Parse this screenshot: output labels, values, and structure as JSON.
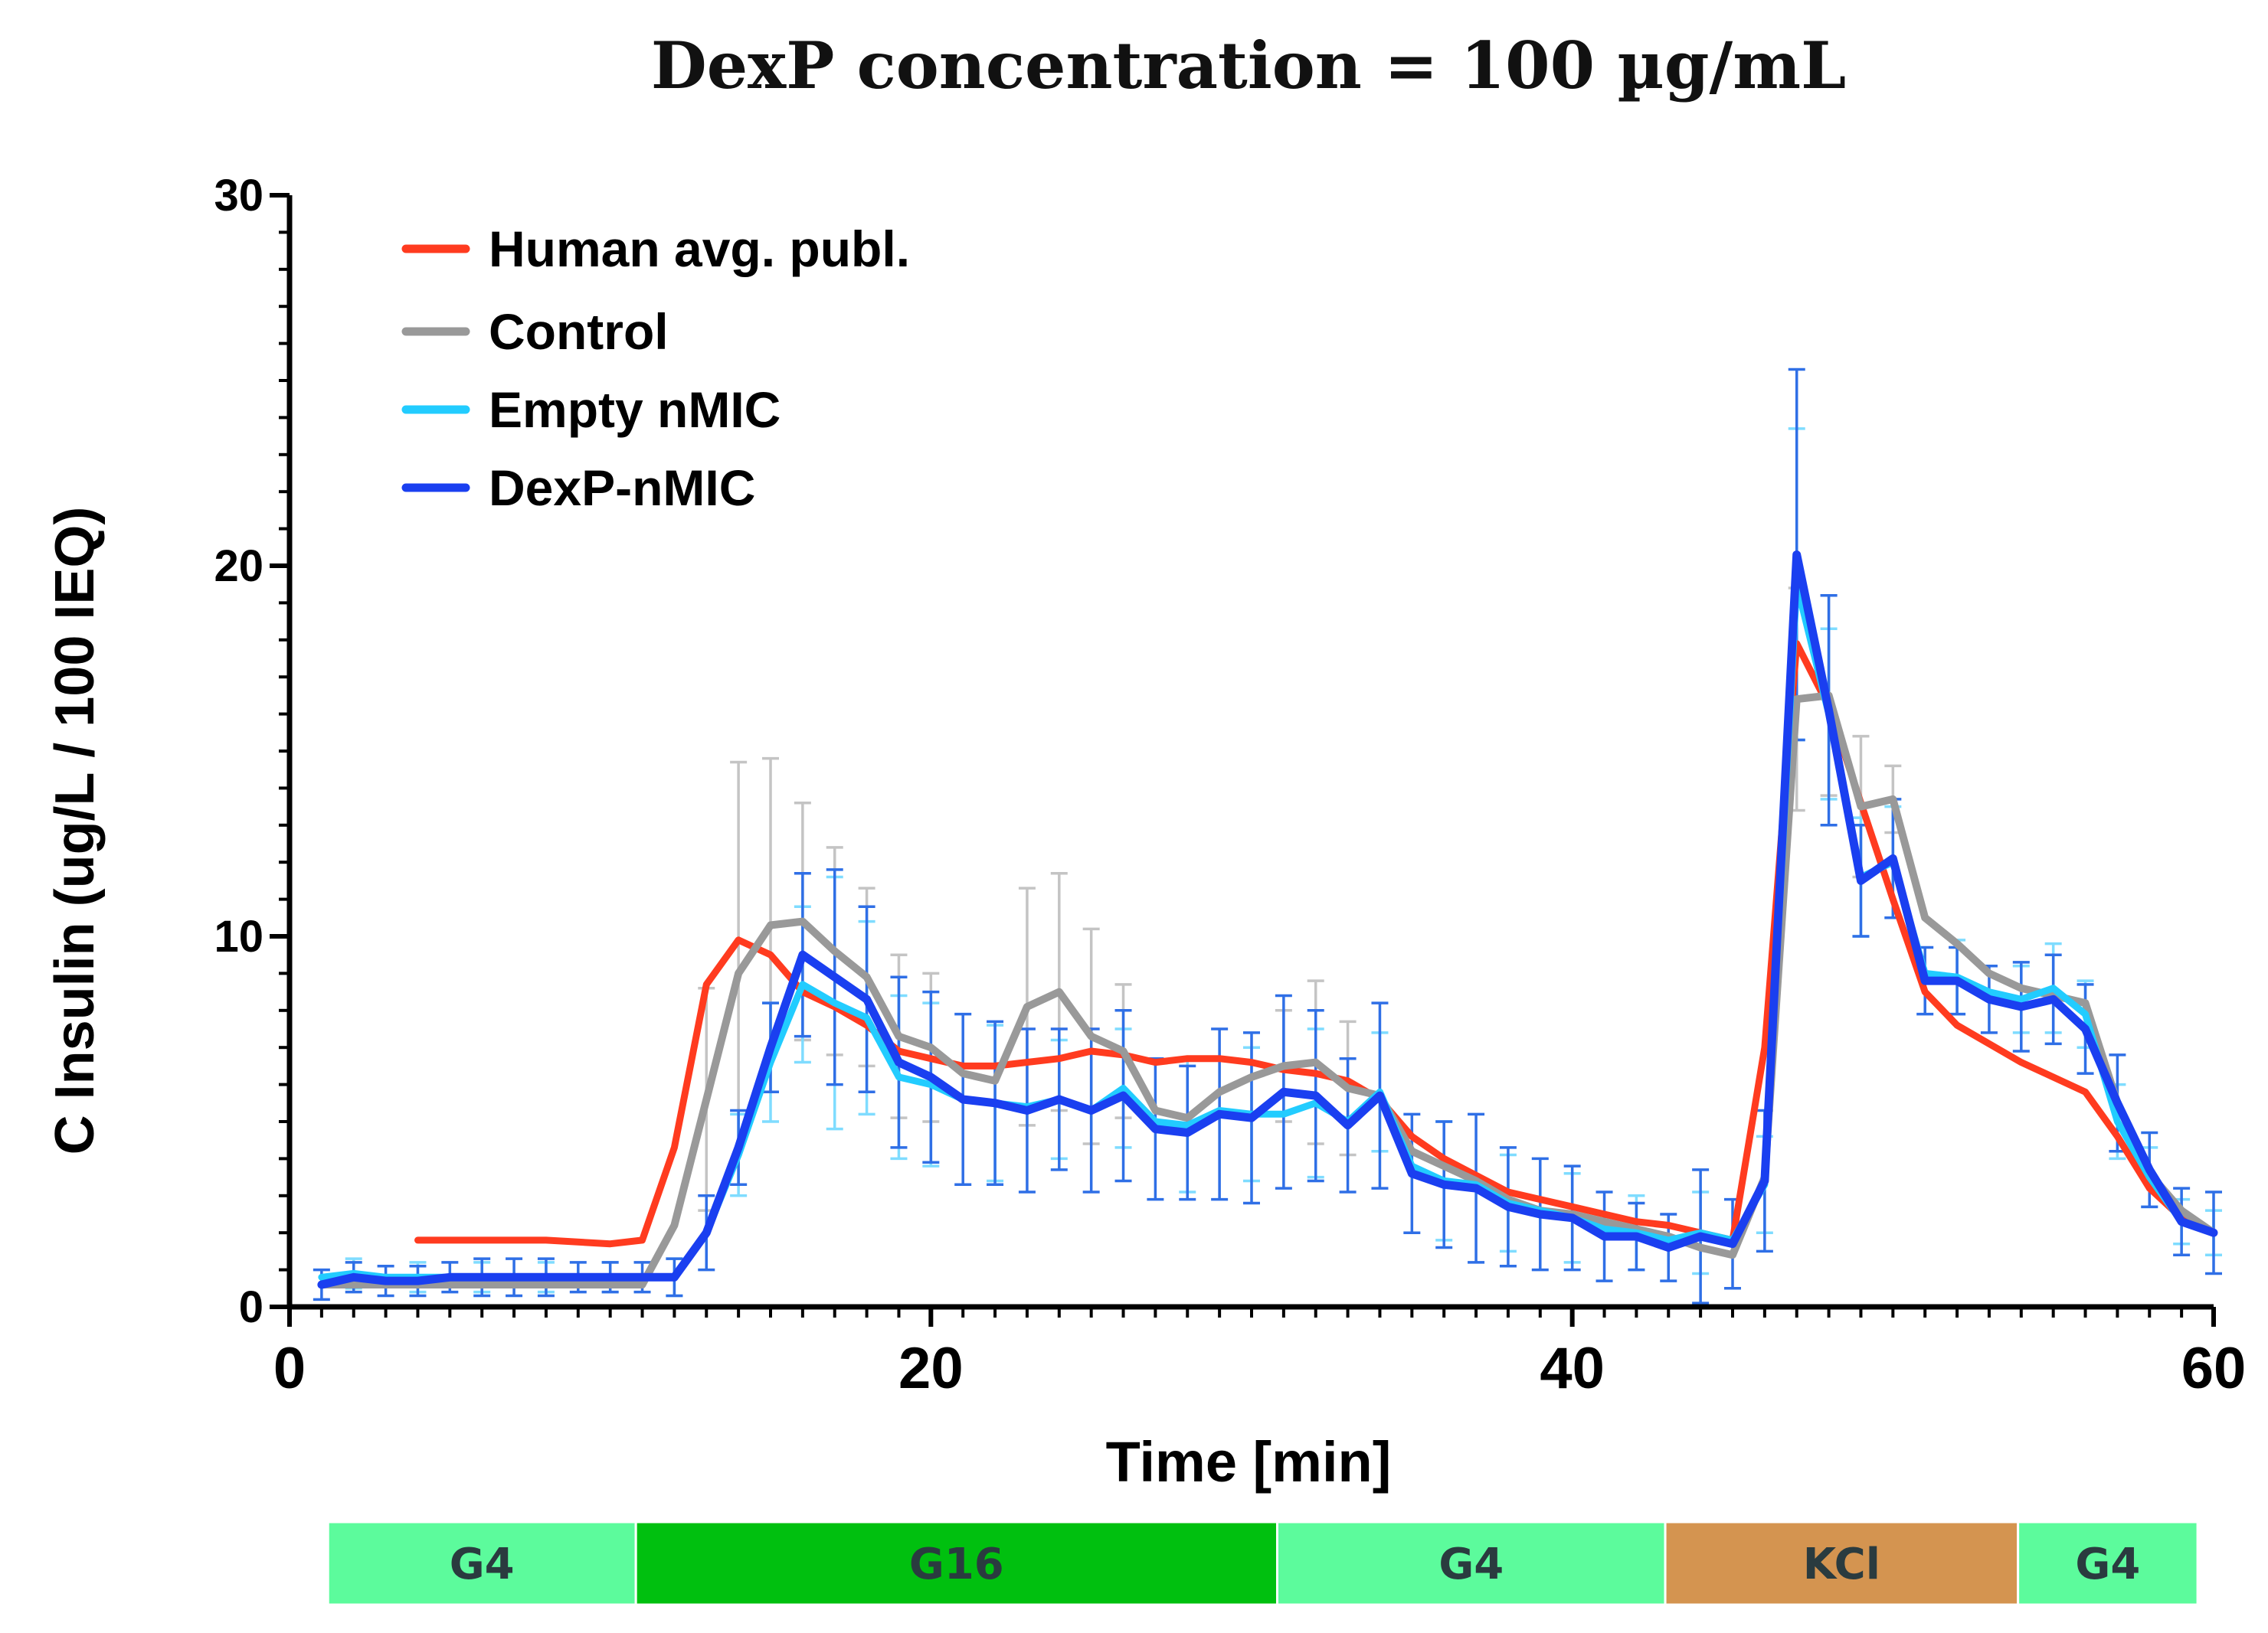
{
  "chart_data": {
    "type": "line",
    "title": "DexP concentration = 100 µg/mL",
    "xlabel": "Time [min]",
    "ylabel": "C Insulin (ug/L / 100 IEQ)",
    "xlim": [
      0,
      60
    ],
    "ylim": [
      0,
      30
    ],
    "x_ticks": [
      0,
      20,
      40,
      60
    ],
    "y_ticks": [
      0,
      10,
      20,
      30
    ],
    "legend_position": "top-left",
    "series": [
      {
        "name": "Human avg. publ.",
        "color": "#ff3b1f",
        "x": [
          4,
          6,
          8,
          10,
          11,
          12,
          13,
          14,
          15,
          16,
          17,
          18,
          19,
          20,
          21,
          22,
          24,
          25,
          26,
          27,
          28,
          29,
          30,
          31,
          32,
          33,
          34,
          35,
          36,
          38,
          40,
          42,
          43,
          44,
          45,
          46,
          47,
          48,
          49,
          50,
          51,
          52,
          53,
          54,
          55,
          56,
          57,
          58,
          59,
          60
        ],
        "y": [
          1.8,
          1.8,
          1.8,
          1.7,
          1.8,
          4.3,
          8.7,
          9.9,
          9.5,
          8.5,
          8.1,
          7.6,
          6.9,
          6.7,
          6.5,
          6.5,
          6.7,
          6.9,
          6.8,
          6.6,
          6.7,
          6.7,
          6.6,
          6.4,
          6.3,
          6.1,
          5.6,
          4.6,
          4.0,
          3.1,
          2.7,
          2.3,
          2.2,
          2.0,
          1.8,
          7.0,
          17.9,
          16.2,
          13.6,
          11.0,
          8.5,
          7.6,
          7.1,
          6.6,
          6.2,
          5.8,
          4.6,
          3.2,
          2.4,
          2.0
        ]
      },
      {
        "name": "Control",
        "color": "#999999",
        "x": [
          1,
          2,
          3,
          4,
          5,
          6,
          7,
          8,
          9,
          10,
          11,
          12,
          13,
          14,
          15,
          16,
          17,
          18,
          19,
          20,
          21,
          22,
          23,
          24,
          25,
          26,
          27,
          28,
          29,
          30,
          31,
          32,
          33,
          34,
          35,
          36,
          37,
          38,
          39,
          40,
          41,
          42,
          43,
          44,
          45,
          46,
          47,
          48,
          49,
          50,
          51,
          52,
          53,
          54,
          55,
          56,
          57,
          58,
          59,
          60
        ],
        "y": [
          0.6,
          0.6,
          0.6,
          0.6,
          0.6,
          0.6,
          0.6,
          0.6,
          0.6,
          0.6,
          0.6,
          2.2,
          5.6,
          9.0,
          10.3,
          10.4,
          9.6,
          8.9,
          7.3,
          7.0,
          6.3,
          6.1,
          8.1,
          8.5,
          7.3,
          6.9,
          5.3,
          5.1,
          5.8,
          6.2,
          6.5,
          6.6,
          5.9,
          5.7,
          4.2,
          3.8,
          3.4,
          2.9,
          2.6,
          2.5,
          2.3,
          2.1,
          1.9,
          1.6,
          1.4,
          3.5,
          16.4,
          16.5,
          13.5,
          13.7,
          10.5,
          9.8,
          9.0,
          8.6,
          8.4,
          8.2,
          5.5,
          3.6,
          2.6,
          2.0
        ]
      },
      {
        "name": "Empty nMIC",
        "color": "#22ccff",
        "x": [
          1,
          2,
          3,
          4,
          5,
          6,
          7,
          8,
          9,
          10,
          11,
          12,
          13,
          14,
          15,
          16,
          17,
          18,
          19,
          20,
          21,
          22,
          23,
          24,
          25,
          26,
          27,
          28,
          29,
          30,
          31,
          32,
          33,
          34,
          35,
          36,
          37,
          38,
          39,
          40,
          41,
          42,
          43,
          44,
          45,
          46,
          47,
          48,
          49,
          50,
          51,
          52,
          53,
          54,
          55,
          56,
          57,
          58,
          59,
          60
        ],
        "y": [
          0.8,
          0.9,
          0.8,
          0.8,
          0.8,
          0.8,
          0.8,
          0.8,
          0.8,
          0.8,
          0.8,
          0.8,
          2.0,
          4.1,
          6.6,
          8.7,
          8.2,
          7.8,
          6.2,
          6.0,
          5.6,
          5.5,
          5.4,
          5.6,
          5.3,
          5.9,
          5.0,
          4.9,
          5.3,
          5.2,
          5.2,
          5.5,
          5.0,
          5.8,
          3.8,
          3.4,
          3.3,
          2.8,
          2.6,
          2.4,
          2.1,
          2.0,
          1.8,
          2.0,
          1.8,
          3.3,
          19.5,
          16.0,
          11.6,
          12.0,
          9.0,
          8.9,
          8.5,
          8.3,
          8.6,
          7.9,
          5.0,
          3.5,
          2.3,
          2.0
        ]
      },
      {
        "name": "DexP-nMIC",
        "color": "#1a3ff0",
        "x": [
          1,
          2,
          3,
          4,
          5,
          6,
          7,
          8,
          9,
          10,
          11,
          12,
          13,
          14,
          15,
          16,
          17,
          18,
          19,
          20,
          21,
          22,
          23,
          24,
          25,
          26,
          27,
          28,
          29,
          30,
          31,
          32,
          33,
          34,
          35,
          36,
          37,
          38,
          39,
          40,
          41,
          42,
          43,
          44,
          45,
          46,
          47,
          48,
          49,
          50,
          51,
          52,
          53,
          54,
          55,
          56,
          57,
          58,
          59,
          60
        ],
        "y": [
          0.6,
          0.8,
          0.7,
          0.7,
          0.8,
          0.8,
          0.8,
          0.8,
          0.8,
          0.8,
          0.8,
          0.8,
          2.0,
          4.3,
          7.0,
          9.5,
          8.9,
          8.3,
          6.6,
          6.2,
          5.6,
          5.5,
          5.3,
          5.6,
          5.3,
          5.7,
          4.8,
          4.7,
          5.2,
          5.1,
          5.8,
          5.7,
          4.9,
          5.7,
          3.6,
          3.3,
          3.2,
          2.7,
          2.5,
          2.4,
          1.9,
          1.9,
          1.6,
          1.9,
          1.7,
          3.4,
          20.3,
          16.1,
          11.5,
          12.1,
          8.8,
          8.8,
          8.3,
          8.1,
          8.3,
          7.5,
          5.5,
          3.7,
          2.3,
          2.0
        ]
      }
    ],
    "error_bars": [
      {
        "series": "Control",
        "color": "#c4c4c4",
        "x": [
          13,
          14,
          15,
          16,
          17,
          18,
          19,
          20,
          23,
          24,
          25,
          26,
          31,
          32,
          33,
          47,
          48,
          49,
          50
        ],
        "err": [
          3.0,
          5.7,
          4.5,
          3.2,
          2.8,
          2.4,
          2.2,
          2.0,
          3.2,
          3.2,
          2.9,
          1.8,
          1.5,
          2.2,
          1.8,
          3.0,
          2.7,
          1.9,
          0.9
        ]
      },
      {
        "series": "Empty nMIC",
        "color": "#7fdcff",
        "x": [
          2,
          4,
          6,
          8,
          10,
          12,
          14,
          15,
          16,
          17,
          18,
          19,
          20,
          22,
          24,
          26,
          28,
          30,
          32,
          34,
          36,
          38,
          40,
          42,
          44,
          46,
          47,
          48,
          49,
          50,
          52,
          54,
          55,
          56,
          57,
          58,
          59,
          60
        ],
        "err": [
          0.4,
          0.4,
          0.4,
          0.4,
          0.4,
          0.5,
          1.1,
          1.6,
          2.1,
          3.4,
          2.6,
          2.2,
          2.2,
          2.1,
          1.6,
          1.6,
          1.8,
          1.8,
          2.0,
          1.6,
          1.6,
          1.3,
          1.2,
          1.0,
          1.1,
          1.3,
          4.2,
          2.3,
          1.6,
          1.5,
          1.0,
          0.9,
          1.2,
          0.9,
          1.0,
          0.8,
          0.6,
          0.6
        ]
      },
      {
        "series": "DexP-nMIC",
        "color": "#2f6fe6",
        "x": [
          1,
          2,
          3,
          4,
          5,
          6,
          7,
          8,
          9,
          10,
          11,
          12,
          13,
          14,
          15,
          16,
          17,
          18,
          19,
          20,
          21,
          22,
          23,
          24,
          25,
          26,
          27,
          28,
          29,
          30,
          31,
          32,
          33,
          34,
          35,
          36,
          37,
          38,
          39,
          40,
          41,
          42,
          43,
          44,
          45,
          46,
          47,
          48,
          49,
          50,
          51,
          52,
          53,
          54,
          55,
          56,
          57,
          58,
          59,
          60
        ],
        "err": [
          0.4,
          0.4,
          0.4,
          0.4,
          0.4,
          0.5,
          0.5,
          0.5,
          0.4,
          0.4,
          0.4,
          0.5,
          1.0,
          1.0,
          1.2,
          2.2,
          2.9,
          2.5,
          2.3,
          2.3,
          2.3,
          2.2,
          2.2,
          1.9,
          2.2,
          2.3,
          1.9,
          1.8,
          2.3,
          2.3,
          2.6,
          2.3,
          1.8,
          2.5,
          1.6,
          1.7,
          2.0,
          1.6,
          1.5,
          1.4,
          1.2,
          0.9,
          0.9,
          1.8,
          1.2,
          1.9,
          5.0,
          3.1,
          1.5,
          1.6,
          0.9,
          0.9,
          0.9,
          1.2,
          1.2,
          1.2,
          1.3,
          1.0,
          0.9,
          1.1
        ]
      }
    ],
    "phases": [
      {
        "label": "G4",
        "start": 1.2,
        "end": 10.8,
        "color": "#5cfb9c"
      },
      {
        "label": "G16",
        "start": 10.8,
        "end": 30.8,
        "color": "#00c00f"
      },
      {
        "label": "G4",
        "start": 30.8,
        "end": 42.9,
        "color": "#5cfb9c"
      },
      {
        "label": "KCl",
        "start": 42.9,
        "end": 53.9,
        "color": "#d49450"
      },
      {
        "label": "G4",
        "start": 53.9,
        "end": 59.5,
        "color": "#5cfb9c"
      }
    ]
  }
}
